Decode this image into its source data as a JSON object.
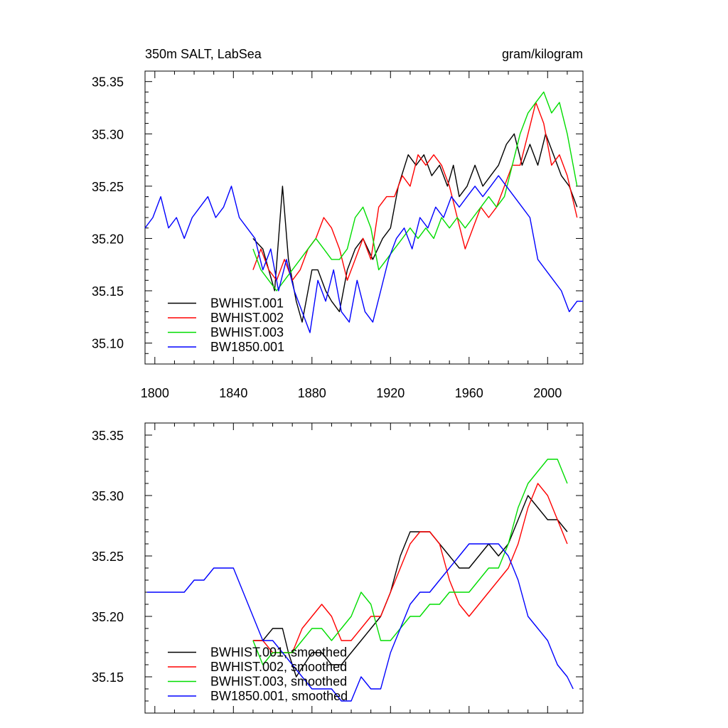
{
  "title_left": "350m SALT, LabSea",
  "title_right": "gram/kilogram",
  "chart_data": [
    {
      "type": "line",
      "xlim": [
        1795,
        2018
      ],
      "ylim": [
        35.08,
        35.36
      ],
      "xticks": [
        1800,
        1840,
        1880,
        1920,
        1960,
        2000
      ],
      "xtick_labels": [
        "1800",
        "1840",
        "1880",
        "1920",
        "1960",
        "2000"
      ],
      "yticks": [
        35.1,
        35.15,
        35.2,
        35.25,
        35.3,
        35.35
      ],
      "ytick_labels": [
        "35.10",
        "35.15",
        "35.20",
        "35.25",
        "35.30",
        "35.35"
      ],
      "legend_position": "bottom-left",
      "series": [
        {
          "name": "BWHIST.001",
          "color": "#000000",
          "x": [
            1850,
            1855,
            1858,
            1861,
            1865,
            1868,
            1872,
            1875,
            1880,
            1883,
            1887,
            1890,
            1894,
            1898,
            1902,
            1906,
            1911,
            1916,
            1920,
            1924,
            1929,
            1933,
            1937,
            1941,
            1945,
            1949,
            1952,
            1955,
            1959,
            1963,
            1967,
            1971,
            1975,
            1979,
            1983,
            1987,
            1991,
            1995,
            1999,
            2003,
            2007,
            2011,
            2015
          ],
          "y": [
            35.2,
            35.19,
            35.17,
            35.15,
            35.25,
            35.18,
            35.14,
            35.12,
            35.17,
            35.17,
            35.15,
            35.14,
            35.13,
            35.17,
            35.19,
            35.2,
            35.18,
            35.2,
            35.21,
            35.25,
            35.28,
            35.27,
            35.28,
            35.26,
            35.27,
            35.25,
            35.27,
            35.24,
            35.25,
            35.27,
            35.25,
            35.26,
            35.27,
            35.29,
            35.3,
            35.27,
            35.29,
            35.27,
            35.3,
            35.28,
            35.26,
            35.25,
            35.23
          ]
        },
        {
          "name": "BWHIST.002",
          "color": "#ff0000",
          "x": [
            1850,
            1854,
            1858,
            1862,
            1866,
            1870,
            1874,
            1878,
            1882,
            1886,
            1890,
            1894,
            1898,
            1902,
            1906,
            1910,
            1914,
            1918,
            1922,
            1926,
            1930,
            1934,
            1938,
            1942,
            1946,
            1950,
            1954,
            1958,
            1962,
            1966,
            1970,
            1974,
            1978,
            1982,
            1986,
            1990,
            1994,
            1998,
            2002,
            2006,
            2010,
            2015
          ],
          "y": [
            35.17,
            35.19,
            35.17,
            35.16,
            35.18,
            35.16,
            35.17,
            35.19,
            35.2,
            35.22,
            35.21,
            35.19,
            35.16,
            35.18,
            35.2,
            35.18,
            35.23,
            35.24,
            35.24,
            35.26,
            35.25,
            35.28,
            35.27,
            35.28,
            35.27,
            35.25,
            35.22,
            35.19,
            35.21,
            35.23,
            35.22,
            35.23,
            35.25,
            35.27,
            35.27,
            35.3,
            35.33,
            35.31,
            35.27,
            35.28,
            35.26,
            35.22
          ]
        },
        {
          "name": "BWHIST.003",
          "color": "#00dd00",
          "x": [
            1850,
            1854,
            1858,
            1862,
            1866,
            1870,
            1874,
            1878,
            1882,
            1886,
            1890,
            1894,
            1898,
            1902,
            1906,
            1910,
            1914,
            1918,
            1922,
            1926,
            1930,
            1934,
            1938,
            1942,
            1946,
            1950,
            1954,
            1958,
            1962,
            1966,
            1970,
            1974,
            1978,
            1982,
            1986,
            1990,
            1994,
            1998,
            2002,
            2006,
            2010,
            2015
          ],
          "y": [
            35.19,
            35.17,
            35.16,
            35.15,
            35.16,
            35.17,
            35.18,
            35.19,
            35.2,
            35.19,
            35.18,
            35.18,
            35.19,
            35.22,
            35.23,
            35.21,
            35.17,
            35.18,
            35.19,
            35.2,
            35.21,
            35.2,
            35.21,
            35.2,
            35.22,
            35.21,
            35.22,
            35.21,
            35.22,
            35.23,
            35.24,
            35.23,
            35.24,
            35.27,
            35.3,
            35.32,
            35.33,
            35.34,
            35.32,
            35.33,
            35.3,
            35.25
          ]
        },
        {
          "name": "BW1850.001",
          "color": "#0000ff",
          "x": [
            1795,
            1799,
            1803,
            1807,
            1811,
            1815,
            1819,
            1823,
            1827,
            1831,
            1835,
            1839,
            1843,
            1847,
            1851,
            1855,
            1859,
            1863,
            1867,
            1871,
            1875,
            1879,
            1883,
            1887,
            1891,
            1895,
            1899,
            1903,
            1907,
            1911,
            1915,
            1919,
            1923,
            1927,
            1931,
            1935,
            1939,
            1943,
            1947,
            1951,
            1955,
            1959,
            1963,
            1967,
            1971,
            1975,
            1979,
            1983,
            1987,
            1991,
            1995,
            1999,
            2003,
            2007,
            2011,
            2015,
            2018
          ],
          "y": [
            35.21,
            35.22,
            35.24,
            35.21,
            35.22,
            35.2,
            35.22,
            35.23,
            35.24,
            35.22,
            35.23,
            35.25,
            35.22,
            35.21,
            35.2,
            35.17,
            35.19,
            35.15,
            35.18,
            35.15,
            35.13,
            35.11,
            35.16,
            35.14,
            35.17,
            35.13,
            35.12,
            35.16,
            35.13,
            35.12,
            35.15,
            35.18,
            35.2,
            35.21,
            35.19,
            35.22,
            35.21,
            35.23,
            35.22,
            35.24,
            35.23,
            35.24,
            35.25,
            35.24,
            35.25,
            35.26,
            35.25,
            35.24,
            35.23,
            35.22,
            35.18,
            35.17,
            35.16,
            35.15,
            35.13,
            35.14,
            35.14
          ]
        }
      ]
    },
    {
      "type": "line",
      "xlim": [
        1795,
        2018
      ],
      "ylim": [
        35.12,
        35.36
      ],
      "xticks": [
        1800,
        1840,
        1880,
        1920,
        1960,
        2000
      ],
      "yticks": [
        35.15,
        35.2,
        35.25,
        35.3,
        35.35
      ],
      "ytick_labels": [
        "35.15",
        "35.20",
        "35.25",
        "35.30",
        "35.35"
      ],
      "legend_position": "bottom-left",
      "series": [
        {
          "name": "BWHIST.001, smoothed",
          "color": "#000000",
          "x": [
            1850,
            1855,
            1860,
            1865,
            1868,
            1872,
            1876,
            1880,
            1885,
            1890,
            1895,
            1900,
            1905,
            1910,
            1915,
            1920,
            1925,
            1930,
            1935,
            1940,
            1945,
            1950,
            1955,
            1960,
            1965,
            1970,
            1975,
            1980,
            1985,
            1990,
            1995,
            2000,
            2005,
            2010
          ],
          "y": [
            35.18,
            35.18,
            35.19,
            35.19,
            35.17,
            35.15,
            35.16,
            35.17,
            35.17,
            35.16,
            35.16,
            35.17,
            35.18,
            35.19,
            35.2,
            35.22,
            35.25,
            35.27,
            35.27,
            35.27,
            35.26,
            35.25,
            35.24,
            35.24,
            35.25,
            35.26,
            35.25,
            35.26,
            35.28,
            35.3,
            35.29,
            35.28,
            35.28,
            35.27
          ]
        },
        {
          "name": "BWHIST.002, smoothed",
          "color": "#ff0000",
          "x": [
            1850,
            1855,
            1860,
            1865,
            1870,
            1875,
            1880,
            1885,
            1890,
            1895,
            1900,
            1905,
            1910,
            1915,
            1920,
            1925,
            1930,
            1935,
            1940,
            1945,
            1950,
            1955,
            1960,
            1965,
            1970,
            1975,
            1980,
            1985,
            1990,
            1995,
            2000,
            2005,
            2010
          ],
          "y": [
            35.18,
            35.18,
            35.17,
            35.17,
            35.17,
            35.19,
            35.2,
            35.21,
            35.2,
            35.18,
            35.18,
            35.19,
            35.2,
            35.2,
            35.22,
            35.24,
            35.26,
            35.27,
            35.27,
            35.26,
            35.23,
            35.21,
            35.2,
            35.21,
            35.22,
            35.23,
            35.24,
            35.26,
            35.29,
            35.31,
            35.3,
            35.28,
            35.26
          ]
        },
        {
          "name": "BWHIST.003, smoothed",
          "color": "#00dd00",
          "x": [
            1850,
            1855,
            1860,
            1865,
            1870,
            1875,
            1880,
            1885,
            1890,
            1895,
            1900,
            1905,
            1910,
            1915,
            1920,
            1925,
            1930,
            1935,
            1940,
            1945,
            1950,
            1955,
            1960,
            1965,
            1970,
            1975,
            1980,
            1985,
            1990,
            1995,
            2000,
            2005,
            2010
          ],
          "y": [
            35.18,
            35.16,
            35.17,
            35.17,
            35.17,
            35.18,
            35.19,
            35.19,
            35.18,
            35.19,
            35.2,
            35.22,
            35.21,
            35.18,
            35.18,
            35.19,
            35.2,
            35.2,
            35.21,
            35.21,
            35.22,
            35.22,
            35.22,
            35.23,
            35.24,
            35.24,
            35.26,
            35.29,
            35.31,
            35.32,
            35.33,
            35.33,
            35.31
          ]
        },
        {
          "name": "BW1850.001, smoothed",
          "color": "#0000ff",
          "x": [
            1796,
            1800,
            1805,
            1810,
            1815,
            1820,
            1825,
            1830,
            1835,
            1840,
            1845,
            1850,
            1855,
            1860,
            1865,
            1870,
            1875,
            1880,
            1885,
            1890,
            1895,
            1900,
            1905,
            1910,
            1915,
            1920,
            1925,
            1930,
            1935,
            1940,
            1945,
            1950,
            1955,
            1960,
            1965,
            1970,
            1975,
            1980,
            1985,
            1990,
            1995,
            2000,
            2005,
            2010,
            2013
          ],
          "y": [
            35.22,
            35.22,
            35.22,
            35.22,
            35.22,
            35.23,
            35.23,
            35.24,
            35.24,
            35.24,
            35.22,
            35.2,
            35.18,
            35.18,
            35.17,
            35.16,
            35.15,
            35.14,
            35.14,
            35.14,
            35.13,
            35.13,
            35.15,
            35.14,
            35.14,
            35.17,
            35.19,
            35.21,
            35.22,
            35.22,
            35.23,
            35.24,
            35.25,
            35.26,
            35.26,
            35.26,
            35.26,
            35.25,
            35.23,
            35.2,
            35.19,
            35.18,
            35.16,
            35.15,
            35.14
          ]
        }
      ]
    }
  ]
}
